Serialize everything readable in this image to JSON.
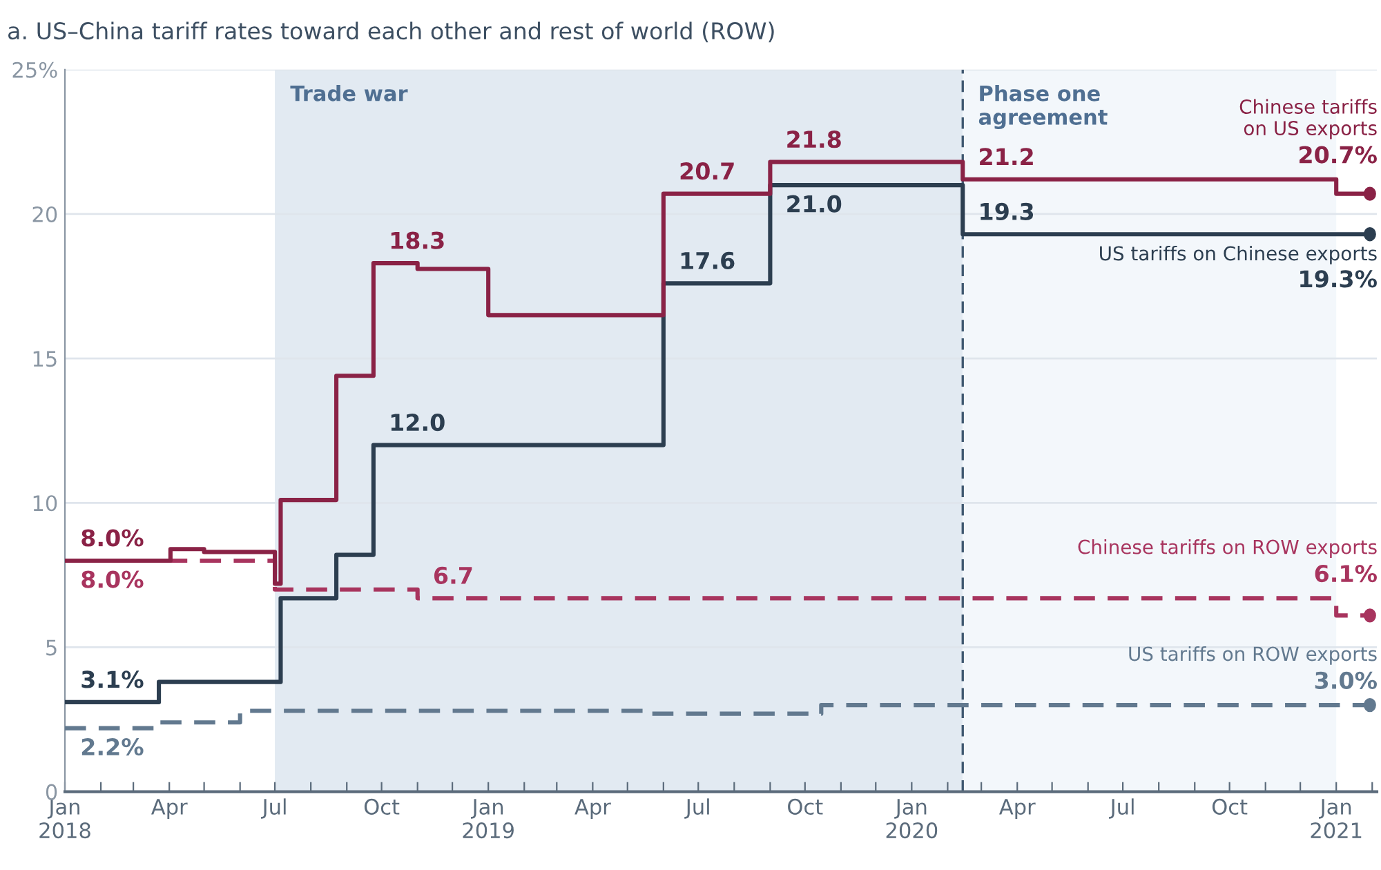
{
  "chart_data": {
    "type": "step",
    "title": "a. US–China tariff rates toward each other and rest of world (ROW)",
    "xlim": [
      "2018-01-01",
      "2021-02-05"
    ],
    "ylim": [
      0,
      25
    ],
    "yticks": [
      0,
      5,
      10,
      15,
      20,
      {
        "value": 25,
        "label": "25%"
      }
    ],
    "xticks": [
      {
        "value": "2018-01-01",
        "label": "Jan\n2018"
      },
      {
        "value": "2018-02-01",
        "label": null
      },
      {
        "value": "2018-03-01",
        "label": null
      },
      {
        "value": "2018-04-01",
        "label": "Apr"
      },
      {
        "value": "2018-05-01",
        "label": null
      },
      {
        "value": "2018-06-01",
        "label": null
      },
      {
        "value": "2018-07-01",
        "label": "Jul"
      },
      {
        "value": "2018-08-01",
        "label": null
      },
      {
        "value": "2018-09-01",
        "label": null
      },
      {
        "value": "2018-10-01",
        "label": "Oct"
      },
      {
        "value": "2018-11-01",
        "label": null
      },
      {
        "value": "2018-12-01",
        "label": null
      },
      {
        "value": "2019-01-01",
        "label": "Jan\n2019"
      },
      {
        "value": "2019-02-01",
        "label": null
      },
      {
        "value": "2019-03-01",
        "label": null
      },
      {
        "value": "2019-04-01",
        "label": "Apr"
      },
      {
        "value": "2019-05-01",
        "label": null
      },
      {
        "value": "2019-06-01",
        "label": null
      },
      {
        "value": "2019-07-01",
        "label": "Jul"
      },
      {
        "value": "2019-08-01",
        "label": null
      },
      {
        "value": "2019-09-01",
        "label": null
      },
      {
        "value": "2019-10-01",
        "label": "Oct"
      },
      {
        "value": "2019-11-01",
        "label": null
      },
      {
        "value": "2019-12-01",
        "label": null
      },
      {
        "value": "2020-01-01",
        "label": "Jan\n2020"
      },
      {
        "value": "2020-02-01",
        "label": null
      },
      {
        "value": "2020-03-01",
        "label": null
      },
      {
        "value": "2020-04-01",
        "label": "Apr"
      },
      {
        "value": "2020-05-01",
        "label": null
      },
      {
        "value": "2020-06-01",
        "label": null
      },
      {
        "value": "2020-07-01",
        "label": "Jul"
      },
      {
        "value": "2020-08-01",
        "label": null
      },
      {
        "value": "2020-09-01",
        "label": null
      },
      {
        "value": "2020-10-01",
        "label": "Oct"
      },
      {
        "value": "2020-11-01",
        "label": null
      },
      {
        "value": "2020-12-01",
        "label": null
      },
      {
        "value": "2021-01-01",
        "label": "Jan\n2021"
      },
      {
        "value": "2021-02-01",
        "label": null
      }
    ],
    "grid": "y",
    "legend": false,
    "bands": [
      {
        "axis": "x",
        "from": "2018-07-01",
        "to": "2020-02-14",
        "label": "Trade war",
        "color": "#e2eaf2"
      },
      {
        "axis": "x",
        "from": "2020-02-14",
        "to": "2021-01-01",
        "label": "Phase one\nagreement",
        "color": "#f3f7fb"
      }
    ],
    "ref_lines": [
      {
        "axis": "x",
        "value": "2020-02-14",
        "label": null,
        "color": "#3f5870",
        "line_style": "dashed"
      }
    ],
    "series": [
      {
        "name": "Chinese tariffs\non US exports",
        "color": "#8a2246",
        "line_style": "solid",
        "x": [
          "2018-01-01",
          "2018-04-02",
          "2018-05-01",
          "2018-07-01",
          "2018-07-06",
          "2018-08-23",
          "2018-09-24",
          "2018-11-01",
          "2019-01-01",
          "2019-06-01",
          "2019-09-01",
          "2020-02-14",
          "2021-01-01",
          "2021-01-30"
        ],
        "values": [
          8.0,
          8.4,
          8.3,
          7.2,
          10.1,
          14.4,
          18.3,
          18.1,
          16.5,
          20.7,
          21.8,
          21.2,
          20.7,
          20.7
        ],
        "value_labels": [
          "8.0%",
          null,
          null,
          null,
          null,
          null,
          "18.3",
          null,
          null,
          "20.7",
          "21.8",
          "21.2",
          null,
          "20.7%"
        ]
      },
      {
        "name": "US tariffs on Chinese exports",
        "color": "#2c3e50",
        "line_style": "solid",
        "x": [
          "2018-01-01",
          "2018-03-23",
          "2018-07-06",
          "2018-08-23",
          "2018-09-24",
          "2019-06-01",
          "2019-09-01",
          "2020-02-14",
          "2021-01-30"
        ],
        "values": [
          3.1,
          3.8,
          6.7,
          8.2,
          12.0,
          17.6,
          21.0,
          19.3,
          19.3
        ],
        "value_labels": [
          "3.1%",
          null,
          null,
          null,
          "12.0",
          "17.6",
          "21.0",
          "19.3",
          "19.3%"
        ]
      },
      {
        "name": "Chinese tariffs on ROW exports",
        "color": "#a8345e",
        "line_style": "dashed",
        "x": [
          "2018-01-01",
          "2018-07-01",
          "2018-11-01",
          "2021-01-01",
          "2021-01-30"
        ],
        "values": [
          8.0,
          7.0,
          6.7,
          6.1,
          6.1
        ],
        "value_labels": [
          "8.0%",
          null,
          "6.7",
          null,
          "6.1%"
        ]
      },
      {
        "name": "US tariffs on ROW exports",
        "color": "#62798f",
        "line_style": "dashed",
        "x": [
          "2018-01-01",
          "2018-03-23",
          "2018-06-01",
          "2019-05-15",
          "2019-10-15",
          "2021-01-30"
        ],
        "values": [
          2.2,
          2.4,
          2.8,
          2.7,
          3.0,
          3.0
        ],
        "value_labels": [
          "2.2%",
          null,
          null,
          null,
          null,
          "3.0%"
        ]
      }
    ]
  }
}
